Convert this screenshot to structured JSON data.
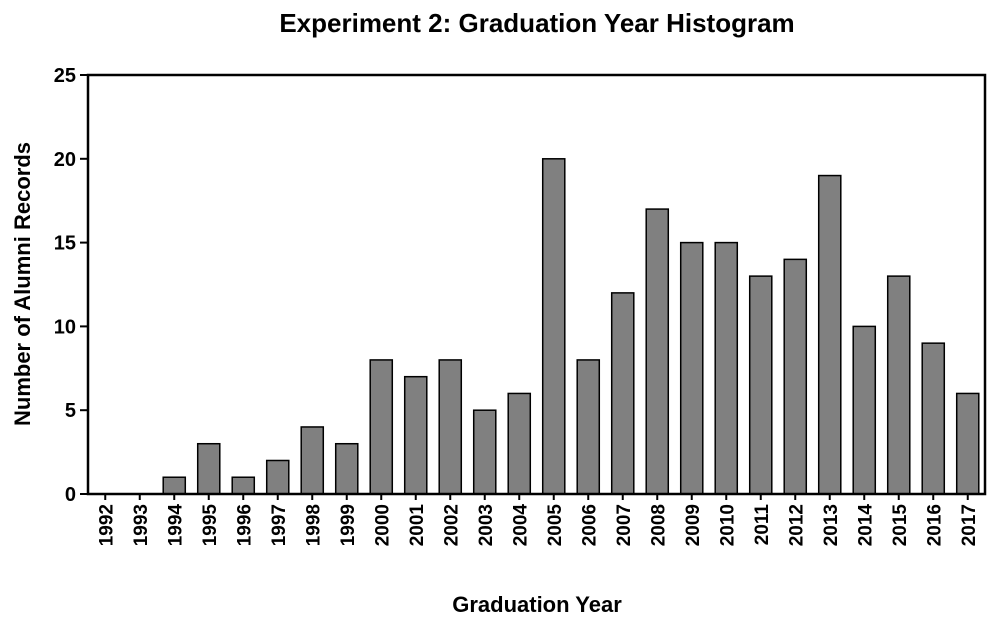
{
  "chart_data": {
    "type": "bar",
    "title": "Experiment 2: Graduation Year Histogram",
    "x_label": "Graduation Year",
    "y_label": "Number of Alumni Records",
    "categories": [
      "1992",
      "1993",
      "1994",
      "1995",
      "1996",
      "1997",
      "1998",
      "1999",
      "2000",
      "2001",
      "2002",
      "2003",
      "2004",
      "2005",
      "2006",
      "2007",
      "2008",
      "2009",
      "2010",
      "2011",
      "2012",
      "2013",
      "2014",
      "2015",
      "2016",
      "2017"
    ],
    "values": [
      0,
      0,
      1,
      3,
      1,
      2,
      4,
      3,
      8,
      7,
      8,
      5,
      6,
      20,
      8,
      12,
      17,
      15,
      15,
      13,
      14,
      19,
      10,
      13,
      9,
      6
    ],
    "color": "#808080",
    "ylim": [
      0,
      25
    ],
    "yticks": [
      0,
      5,
      10,
      15,
      20,
      25
    ],
    "grid": false
  }
}
